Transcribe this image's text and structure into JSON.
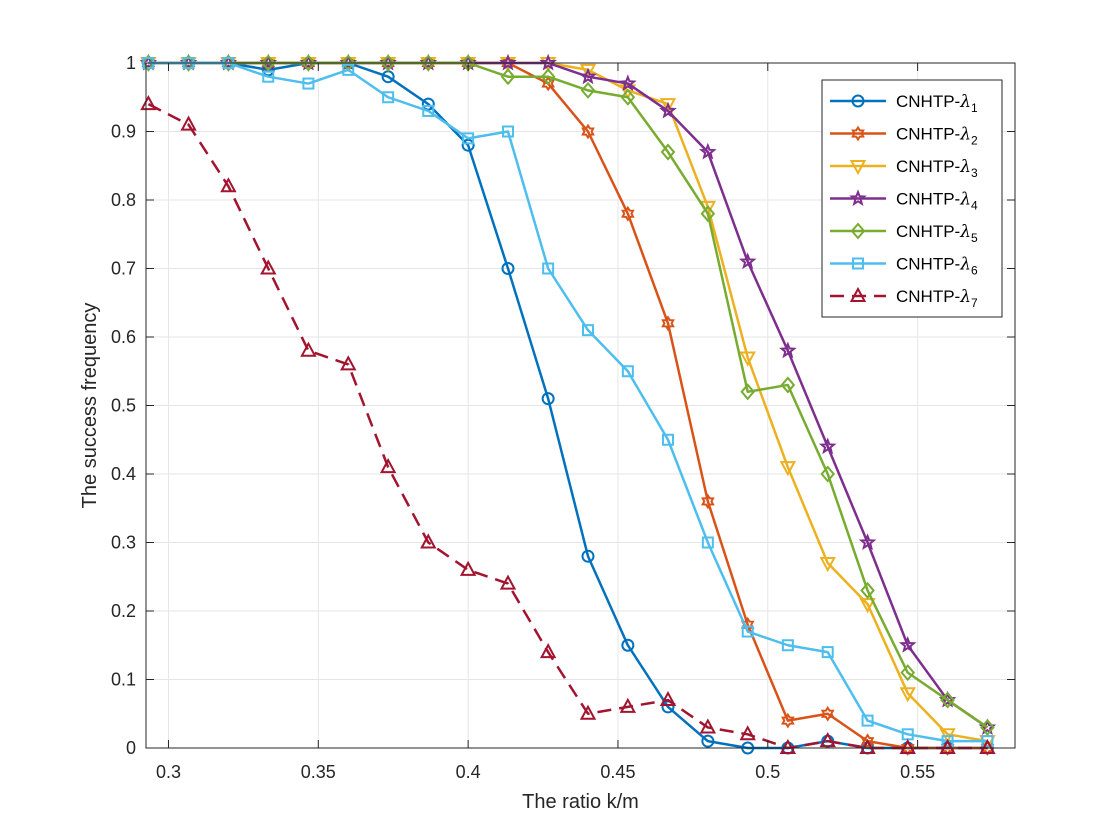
{
  "chart_data": {
    "type": "line",
    "title": "",
    "xlabel": "The ratio k/m",
    "ylabel": "The success frequency",
    "xlim": [
      0.2925,
      0.5825
    ],
    "ylim": [
      0,
      1
    ],
    "xticks": [
      0.3,
      0.35,
      0.4,
      0.45,
      0.5,
      0.55
    ],
    "xtick_labels": [
      "0.3",
      "0.35",
      "0.4",
      "0.45",
      "0.5",
      "0.55"
    ],
    "yticks": [
      0,
      0.1,
      0.2,
      0.3,
      0.4,
      0.5,
      0.6,
      0.7,
      0.8,
      0.9,
      1
    ],
    "ytick_labels": [
      "0",
      "0.1",
      "0.2",
      "0.3",
      "0.4",
      "0.5",
      "0.6",
      "0.7",
      "0.8",
      "0.9",
      "1"
    ],
    "grid": true,
    "legend_position": "top-right",
    "x": [
      0.2933,
      0.3067,
      0.32,
      0.3333,
      0.3467,
      0.36,
      0.3733,
      0.3867,
      0.4,
      0.4133,
      0.4267,
      0.44,
      0.4533,
      0.4667,
      0.48,
      0.4933,
      0.5067,
      0.52,
      0.5333,
      0.5467,
      0.56,
      0.5733
    ],
    "series": [
      {
        "name": "CNHTP-λ1",
        "label_main": "CNHTP-",
        "label_sym": "λ",
        "label_sub": "1",
        "color": "#0072BD",
        "marker": "circle",
        "dash": "solid",
        "values": [
          1,
          1,
          1,
          0.99,
          1,
          1,
          0.98,
          0.94,
          0.88,
          0.7,
          0.51,
          0.28,
          0.15,
          0.06,
          0.01,
          0,
          0,
          0.01,
          0,
          0,
          0,
          0
        ]
      },
      {
        "name": "CNHTP-λ2",
        "label_main": "CNHTP-",
        "label_sym": "λ",
        "label_sub": "2",
        "color": "#D95319",
        "marker": "hexagram",
        "dash": "solid",
        "values": [
          1,
          1,
          1,
          1,
          1,
          1,
          1,
          1,
          1,
          1,
          0.97,
          0.9,
          0.78,
          0.62,
          0.36,
          0.18,
          0.04,
          0.05,
          0.01,
          0,
          0,
          0
        ]
      },
      {
        "name": "CNHTP-λ3",
        "label_main": "CNHTP-",
        "label_sym": "λ",
        "label_sub": "3",
        "color": "#EDB120",
        "marker": "triangle-down",
        "dash": "solid",
        "values": [
          1,
          1,
          1,
          1,
          1,
          1,
          1,
          1,
          1,
          1,
          1,
          0.99,
          0.96,
          0.94,
          0.79,
          0.57,
          0.41,
          0.27,
          0.21,
          0.08,
          0.02,
          0.01
        ]
      },
      {
        "name": "CNHTP-λ4",
        "label_main": "CNHTP-",
        "label_sym": "λ",
        "label_sub": "4",
        "color": "#7E2F8E",
        "marker": "pentagram",
        "dash": "solid",
        "values": [
          1,
          1,
          1,
          1,
          1,
          1,
          1,
          1,
          1,
          1,
          1,
          0.98,
          0.97,
          0.93,
          0.87,
          0.71,
          0.58,
          0.44,
          0.3,
          0.15,
          0.07,
          0.03
        ]
      },
      {
        "name": "CNHTP-λ5",
        "label_main": "CNHTP-",
        "label_sym": "λ",
        "label_sub": "5",
        "color": "#77AC30",
        "marker": "diamond",
        "dash": "solid",
        "values": [
          1,
          1,
          1,
          1,
          1,
          1,
          1,
          1,
          1,
          0.98,
          0.98,
          0.96,
          0.95,
          0.87,
          0.78,
          0.52,
          0.53,
          0.4,
          0.23,
          0.11,
          0.07,
          0.03
        ]
      },
      {
        "name": "CNHTP-λ6",
        "label_main": "CNHTP-",
        "label_sym": "λ",
        "label_sub": "6",
        "color": "#4DBEEE",
        "marker": "square",
        "dash": "solid",
        "values": [
          1,
          1,
          1,
          0.98,
          0.97,
          0.99,
          0.95,
          0.93,
          0.89,
          0.9,
          0.7,
          0.61,
          0.55,
          0.45,
          0.3,
          0.17,
          0.15,
          0.14,
          0.04,
          0.02,
          0.01,
          0.01
        ]
      },
      {
        "name": "CNHTP-λ7",
        "label_main": "CNHTP-",
        "label_sym": "λ",
        "label_sub": "7",
        "color": "#A2142F",
        "marker": "triangle-up",
        "dash": "dashed",
        "values": [
          0.94,
          0.91,
          0.82,
          0.7,
          0.58,
          0.56,
          0.41,
          0.3,
          0.26,
          0.24,
          0.14,
          0.05,
          0.06,
          0.07,
          0.03,
          0.02,
          0,
          0.01,
          0,
          0,
          0,
          0
        ]
      }
    ]
  }
}
